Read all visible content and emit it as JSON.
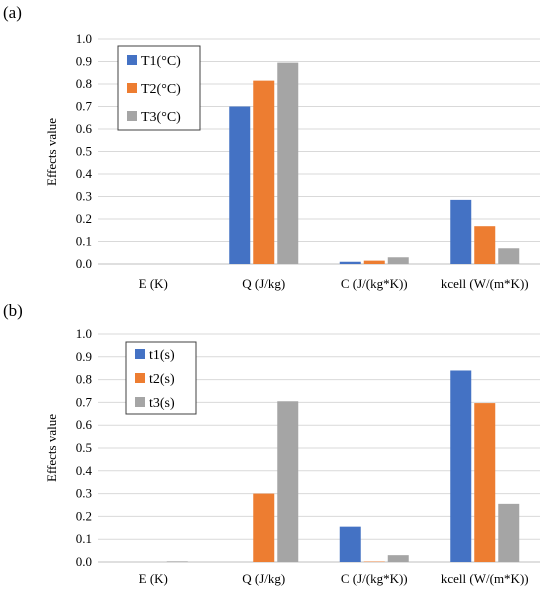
{
  "chart_data": [
    {
      "type": "bar",
      "panel_label": "(a)",
      "ylabel": "Effects value",
      "ylim": [
        0,
        1.0
      ],
      "yticks": [
        "0.0",
        "0.1",
        "0.2",
        "0.3",
        "0.4",
        "0.5",
        "0.6",
        "0.7",
        "0.8",
        "0.9",
        "1.0"
      ],
      "categories": [
        "E (K)",
        "Q (J/kg)",
        "C (J/(kg*K))",
        "kcell (W/(m*K))"
      ],
      "legend_position": "top-left",
      "series": [
        {
          "name": "T1(°C)",
          "color": "#4472C4",
          "values": [
            0.0,
            0.7,
            0.01,
            0.285
          ]
        },
        {
          "name": "T2(°C)",
          "color": "#ED7D31",
          "values": [
            0.0,
            0.815,
            0.015,
            0.168
          ]
        },
        {
          "name": "T3(°C)",
          "color": "#A5A5A5",
          "values": [
            0.0,
            0.895,
            0.03,
            0.07
          ]
        }
      ]
    },
    {
      "type": "bar",
      "panel_label": "(b)",
      "ylabel": "Effects value",
      "ylim": [
        0,
        1.0
      ],
      "yticks": [
        "0.0",
        "0.1",
        "0.2",
        "0.3",
        "0.4",
        "0.5",
        "0.6",
        "0.7",
        "0.8",
        "0.9",
        "1.0"
      ],
      "categories": [
        "E (K)",
        "Q (J/kg)",
        "C (J/(kg*K))",
        "kcell (W/(m*K))"
      ],
      "legend_position": "top-left",
      "series": [
        {
          "name": "t1(s)",
          "color": "#4472C4",
          "values": [
            0.0,
            0.0,
            0.155,
            0.84
          ]
        },
        {
          "name": "t2(s)",
          "color": "#ED7D31",
          "values": [
            0.0,
            0.3,
            0.002,
            0.697
          ]
        },
        {
          "name": "t3(s)",
          "color": "#A5A5A5",
          "values": [
            0.003,
            0.705,
            0.03,
            0.255
          ]
        }
      ]
    }
  ]
}
